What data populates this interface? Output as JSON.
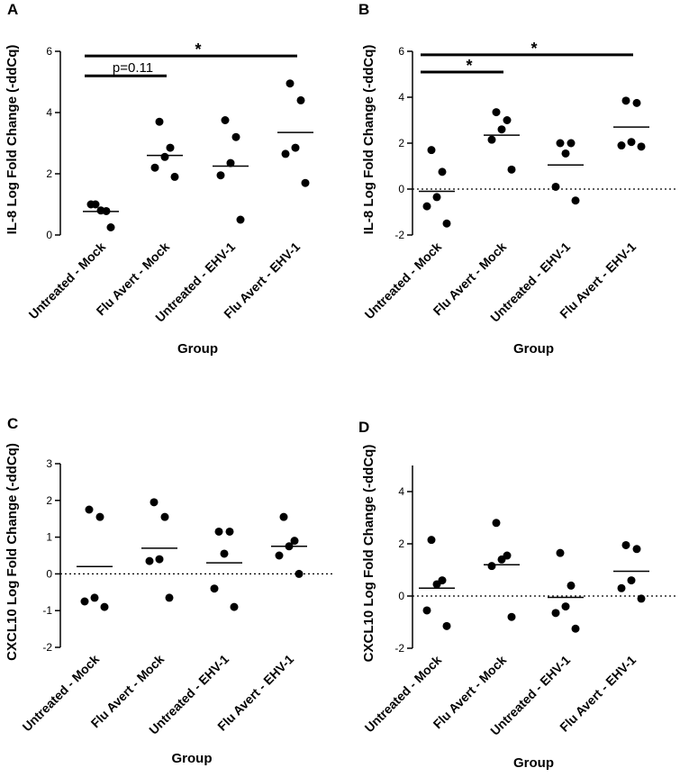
{
  "chart_data": [
    {
      "type": "scatter",
      "panel": "A",
      "ylabel": "IL-8 Log Fold Change (-ddCq)",
      "xlabel": "Group",
      "categories": [
        "Untreated - Mock",
        "Flu Avert - Mock",
        "Untreated - EHV-1",
        "Flu Avert - EHV-1"
      ],
      "ylim": [
        0,
        6
      ],
      "yticks": [
        0,
        2,
        4,
        6
      ],
      "zero_line": false,
      "points": [
        [
          1.0,
          0.78,
          0.8,
          1.0,
          0.25
        ],
        [
          3.7,
          2.85,
          2.55,
          2.2,
          1.9
        ],
        [
          3.75,
          3.2,
          2.35,
          1.95,
          0.5
        ],
        [
          4.95,
          4.4,
          2.85,
          2.65,
          1.7
        ]
      ],
      "means": [
        0.77,
        2.6,
        2.25,
        3.35
      ],
      "annotations": [
        {
          "from": 0,
          "to": 1,
          "y": 5.2,
          "label": "p=0.11"
        },
        {
          "from": 0,
          "to": 3,
          "y": 5.85,
          "label": "*"
        }
      ]
    },
    {
      "type": "scatter",
      "panel": "B",
      "ylabel": "IL-8 Log Fold Change (-ddCq)",
      "xlabel": "Group",
      "categories": [
        "Untreated - Mock",
        "Flu Avert - Mock",
        "Untreated - EHV-1",
        "Flu Avert - EHV-1"
      ],
      "ylim": [
        -2,
        6
      ],
      "yticks": [
        -2,
        0,
        2,
        4,
        6
      ],
      "zero_line": true,
      "points": [
        [
          1.7,
          0.75,
          -0.35,
          -0.75,
          -1.5
        ],
        [
          3.35,
          3.0,
          2.6,
          2.15,
          0.85
        ],
        [
          2.0,
          2.0,
          1.55,
          0.1,
          -0.5
        ],
        [
          3.85,
          3.75,
          2.05,
          1.9,
          1.85
        ]
      ],
      "means": [
        -0.1,
        2.35,
        1.05,
        2.7
      ],
      "annotations": [
        {
          "from": 0,
          "to": 1,
          "y": 5.1,
          "label": "*"
        },
        {
          "from": 0,
          "to": 3,
          "y": 5.85,
          "label": "*"
        }
      ]
    },
    {
      "type": "scatter",
      "panel": "C",
      "ylabel": "CXCL10 Log Fold Change (-ddCq)",
      "xlabel": "Group",
      "categories": [
        "Untreated - Mock",
        "Flu Avert - Mock",
        "Untreated - EHV-1",
        "Flu Avert - EHV-1"
      ],
      "ylim": [
        -2,
        3
      ],
      "yticks": [
        -2,
        -1,
        0,
        1,
        2,
        3
      ],
      "zero_line": true,
      "points": [
        [
          1.75,
          1.55,
          -0.65,
          -0.75,
          -0.9
        ],
        [
          1.95,
          1.55,
          0.4,
          0.35,
          -0.65
        ],
        [
          1.15,
          1.15,
          0.55,
          -0.4,
          -0.9
        ],
        [
          1.55,
          0.9,
          0.75,
          0.5,
          0.0
        ]
      ],
      "means": [
        0.2,
        0.7,
        0.3,
        0.75
      ],
      "annotations": []
    },
    {
      "type": "scatter",
      "panel": "D",
      "ylabel": "CXCL10 Log Fold Change (-ddCq)",
      "xlabel": "Group",
      "categories": [
        "Untreated - Mock",
        "Flu Avert - Mock",
        "Untreated - EHV-1",
        "Flu Avert - EHV-1"
      ],
      "ylim": [
        -2,
        5
      ],
      "yticks": [
        -2,
        0,
        2,
        4
      ],
      "zero_line": true,
      "points": [
        [
          2.15,
          0.6,
          0.45,
          -0.55,
          -1.15
        ],
        [
          2.8,
          1.55,
          1.4,
          1.15,
          -0.8
        ],
        [
          1.65,
          0.4,
          -0.4,
          -0.65,
          -1.25
        ],
        [
          1.95,
          1.8,
          0.6,
          0.3,
          -0.1
        ]
      ],
      "means": [
        0.3,
        1.2,
        -0.05,
        0.95
      ],
      "annotations": []
    }
  ]
}
